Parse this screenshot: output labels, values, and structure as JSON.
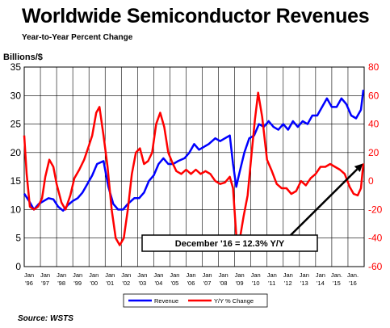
{
  "title": "Worldwide Semiconductor Revenues",
  "subtitle": "Year-to-Year Percent Change",
  "source": "Source: WSTS",
  "chart_data": {
    "type": "line",
    "title": "Worldwide Semiconductor Revenues",
    "subtitle": "Year-to-Year Percent Change",
    "ylabel_left": "Billions/$",
    "ylim_left": [
      0,
      35
    ],
    "yticks_left": [
      0,
      5,
      10,
      15,
      20,
      25,
      30,
      35
    ],
    "ylim_right": [
      -60,
      80
    ],
    "yticks_right": [
      -60,
      -40,
      -20,
      0,
      20,
      40,
      60,
      80
    ],
    "x_start": 1996.0,
    "x_end": 2017.0,
    "xtick_labels": [
      {
        "top": "Jan",
        "bottom": "'96"
      },
      {
        "top": "Jan",
        "bottom": "'97"
      },
      {
        "top": "Jan",
        "bottom": "'98"
      },
      {
        "top": "Jan",
        "bottom": "'99"
      },
      {
        "top": "Jan",
        "bottom": "'00"
      },
      {
        "top": "Jan",
        "bottom": "'01"
      },
      {
        "top": "Jan",
        "bottom": "'02"
      },
      {
        "top": "Jan",
        "bottom": "'03"
      },
      {
        "top": "Jan",
        "bottom": "'04"
      },
      {
        "top": "Jan",
        "bottom": "'05"
      },
      {
        "top": "Jan",
        "bottom": "'06"
      },
      {
        "top": "Jan",
        "bottom": "'07"
      },
      {
        "top": "Jan",
        "bottom": "'08"
      },
      {
        "top": "Jan",
        "bottom": "'09"
      },
      {
        "top": "Jan",
        "bottom": "'10"
      },
      {
        "top": "Jan",
        "bottom": "'11"
      },
      {
        "top": "Jan",
        "bottom": "'12"
      },
      {
        "top": "Jan",
        "bottom": "'13"
      },
      {
        "top": "Jan",
        "bottom": "'14"
      },
      {
        "top": "Jan.",
        "bottom": "'15"
      },
      {
        "top": "Jan.",
        "bottom": "'16"
      }
    ],
    "grid": true,
    "legend_position": "bottom-center",
    "annotation": {
      "text": "December '16 = 12.3% Y/Y",
      "x": 2016.92,
      "y_pct": 12.3,
      "axis": "right"
    },
    "series": [
      {
        "name": "Revenue",
        "axis": "left",
        "color": "#0000ff",
        "x": [
          1996.0,
          1996.3,
          1996.6,
          1996.9,
          1997.2,
          1997.5,
          1997.8,
          1998.1,
          1998.4,
          1998.7,
          1999.0,
          1999.3,
          1999.6,
          1999.9,
          2000.2,
          2000.5,
          2000.9,
          2001.2,
          2001.5,
          2001.8,
          2002.1,
          2002.4,
          2002.8,
          2003.1,
          2003.4,
          2003.7,
          2004.0,
          2004.3,
          2004.6,
          2004.9,
          2005.2,
          2005.5,
          2005.9,
          2006.2,
          2006.5,
          2006.8,
          2007.1,
          2007.4,
          2007.8,
          2008.1,
          2008.4,
          2008.7,
          2008.9,
          2009.1,
          2009.3,
          2009.6,
          2009.9,
          2010.2,
          2010.5,
          2010.8,
          2011.1,
          2011.4,
          2011.7,
          2012.0,
          2012.3,
          2012.6,
          2012.9,
          2013.2,
          2013.5,
          2013.8,
          2014.1,
          2014.4,
          2014.7,
          2015.0,
          2015.3,
          2015.6,
          2015.9,
          2016.2,
          2016.5,
          2016.8,
          2016.95
        ],
        "values": [
          12.8,
          11.5,
          10.0,
          11.0,
          11.5,
          12.0,
          11.8,
          10.5,
          9.8,
          10.8,
          11.5,
          12.0,
          13.0,
          14.5,
          16.0,
          18.0,
          18.5,
          14.0,
          11.0,
          10.0,
          10.0,
          11.0,
          12.0,
          12.0,
          13.0,
          15.0,
          16.0,
          18.0,
          19.0,
          18.0,
          18.0,
          18.5,
          19.0,
          20.0,
          21.5,
          20.5,
          21.0,
          21.5,
          22.5,
          22.0,
          22.5,
          23.0,
          18.0,
          14.0,
          16.5,
          20.0,
          22.5,
          23.0,
          25.0,
          24.5,
          25.5,
          24.5,
          24.0,
          25.0,
          24.0,
          25.5,
          24.5,
          25.5,
          25.0,
          26.5,
          26.5,
          28.0,
          29.5,
          28.0,
          28.0,
          29.5,
          28.5,
          26.5,
          26.0,
          27.5,
          31.0
        ]
      },
      {
        "name": "Y/Y % Change",
        "axis": "right",
        "color": "#ff0000",
        "x": [
          1996.0,
          1996.15,
          1996.35,
          1996.6,
          1996.85,
          1997.1,
          1997.3,
          1997.55,
          1997.8,
          1998.0,
          1998.3,
          1998.55,
          1998.85,
          1999.1,
          1999.4,
          1999.7,
          2000.0,
          2000.2,
          2000.45,
          2000.65,
          2000.9,
          2001.15,
          2001.4,
          2001.65,
          2001.9,
          2002.15,
          2002.4,
          2002.65,
          2002.9,
          2003.15,
          2003.4,
          2003.65,
          2003.9,
          2004.15,
          2004.4,
          2004.65,
          2004.9,
          2005.15,
          2005.4,
          2005.7,
          2006.0,
          2006.3,
          2006.6,
          2006.9,
          2007.2,
          2007.5,
          2007.8,
          2008.1,
          2008.4,
          2008.7,
          2008.9,
          2009.1,
          2009.3,
          2009.55,
          2009.8,
          2010.05,
          2010.25,
          2010.45,
          2010.7,
          2011.0,
          2011.3,
          2011.6,
          2011.9,
          2012.2,
          2012.5,
          2012.8,
          2013.1,
          2013.4,
          2013.7,
          2014.0,
          2014.3,
          2014.6,
          2014.9,
          2015.2,
          2015.5,
          2015.8,
          2016.1,
          2016.35,
          2016.6,
          2016.8,
          2016.95
        ],
        "values": [
          32,
          5,
          -18,
          -20,
          -18,
          -12,
          3,
          15,
          10,
          -2,
          -15,
          -20,
          -10,
          2,
          8,
          15,
          25,
          32,
          48,
          52,
          32,
          10,
          -20,
          -40,
          -45,
          -40,
          -20,
          5,
          20,
          23,
          12,
          14,
          20,
          40,
          48,
          38,
          20,
          13,
          7,
          5,
          8,
          5,
          8,
          5,
          7,
          5,
          0,
          -2,
          -1,
          3,
          -5,
          -38,
          -42,
          -25,
          -10,
          20,
          43,
          62,
          45,
          15,
          7,
          -2,
          -5,
          -5,
          -9,
          -7,
          0,
          -3,
          2,
          5,
          10,
          10,
          12,
          10,
          8,
          5,
          -4,
          -9,
          -10,
          -5,
          12.3
        ]
      }
    ]
  }
}
